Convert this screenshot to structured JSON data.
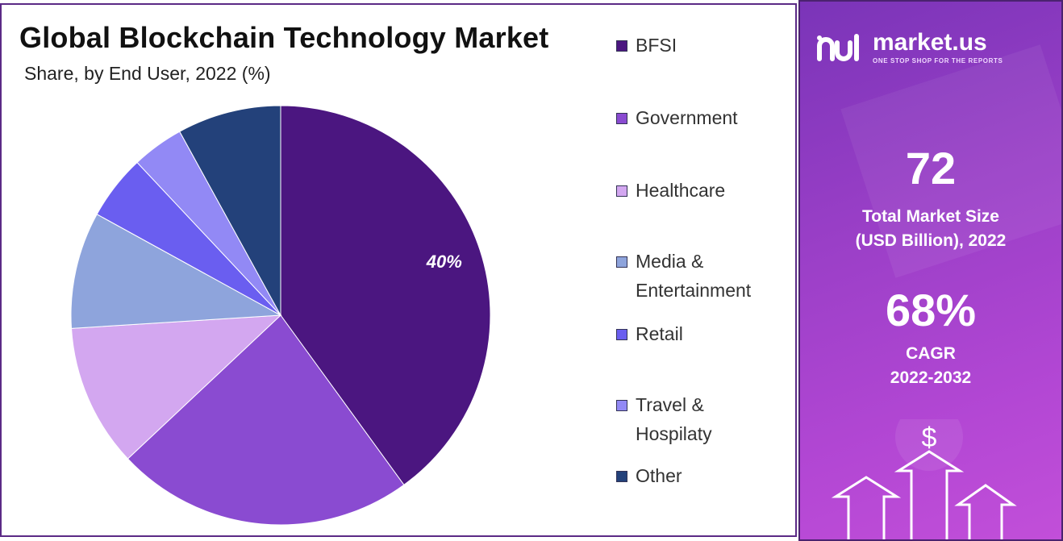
{
  "chart_data": {
    "type": "pie",
    "title": "Global Blockchain Technology Market",
    "subtitle": "Share, by End User, 2022 (%)",
    "slices": [
      {
        "label": "BFSI",
        "value": 40,
        "color": "#4b1680",
        "shown_label": "40%"
      },
      {
        "label": "Government",
        "value": 23,
        "color": "#8a4bd1"
      },
      {
        "label": "Healthcare",
        "value": 11,
        "color": "#d3a7f0"
      },
      {
        "label": "Media & Entertainment",
        "value": 9,
        "color": "#8ea4dc"
      },
      {
        "label": "Retail",
        "value": 5,
        "color": "#6a5ef0"
      },
      {
        "label": "Travel & Hospilaty",
        "value": 4,
        "color": "#9289f5"
      },
      {
        "label": "Other",
        "value": 8,
        "color": "#23417a"
      }
    ],
    "legend_position": "right"
  },
  "legend": [
    {
      "lines": [
        "BFSI"
      ],
      "color": "#4b1680"
    },
    {
      "lines": [
        "Government"
      ],
      "color": "#8a4bd1"
    },
    {
      "lines": [
        "Healthcare"
      ],
      "color": "#d3a7f0"
    },
    {
      "lines": [
        "Media &",
        "Entertainment"
      ],
      "color": "#8ea4dc"
    },
    {
      "lines": [
        "Retail"
      ],
      "color": "#6a5ef0"
    },
    {
      "lines": [
        "Travel &",
        "Hospilaty"
      ],
      "color": "#9289f5"
    },
    {
      "lines": [
        "Other"
      ],
      "color": "#23417a"
    }
  ],
  "sidebar": {
    "brand_name": "market.us",
    "brand_tagline": "ONE STOP SHOP FOR THE REPORTS",
    "market_size_value": "72",
    "market_size_label_1": "Total Market Size",
    "market_size_label_2": "(USD Billion), 2022",
    "cagr_value": "68%",
    "cagr_label_1": "CAGR",
    "cagr_label_2": "2022-2032",
    "currency_symbol": "$"
  }
}
